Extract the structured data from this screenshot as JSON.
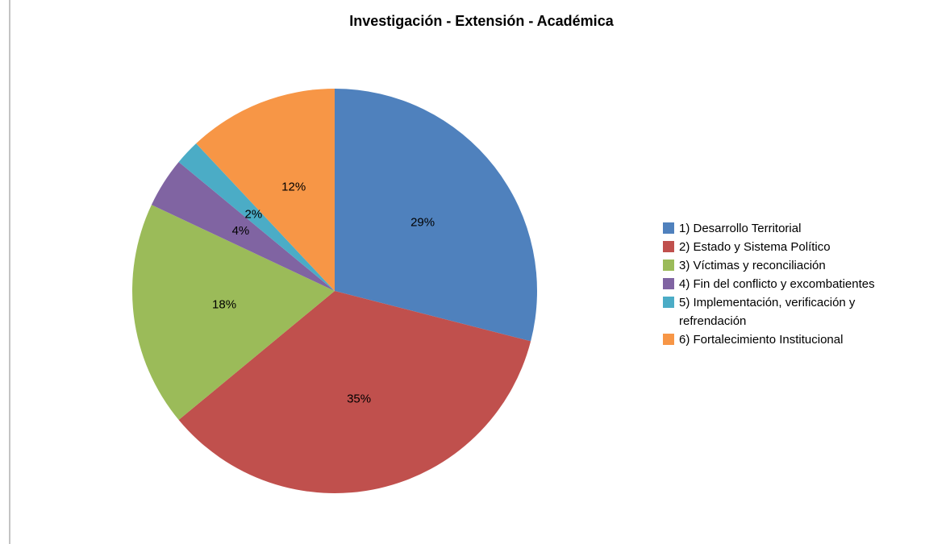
{
  "chart_data": {
    "type": "pie",
    "title": "Investigación - Extensión - Académica",
    "categories": [
      "1) Desarrollo Territorial",
      "2) Estado y Sistema Político",
      "3) Víctimas y reconciliación",
      "4) Fin del conflicto y excombatientes",
      "5) Implementación, verificación y refrendación",
      "6) Fortalecimiento Institucional"
    ],
    "values": [
      29,
      35,
      18,
      4,
      2,
      12
    ],
    "value_labels": [
      "29%",
      "35%",
      "18%",
      "4%",
      "2%",
      "12%"
    ],
    "colors": [
      "#4f81bd",
      "#c0504d",
      "#9bbb59",
      "#8064a2",
      "#4bacc6",
      "#f79646"
    ],
    "legend": "right"
  }
}
